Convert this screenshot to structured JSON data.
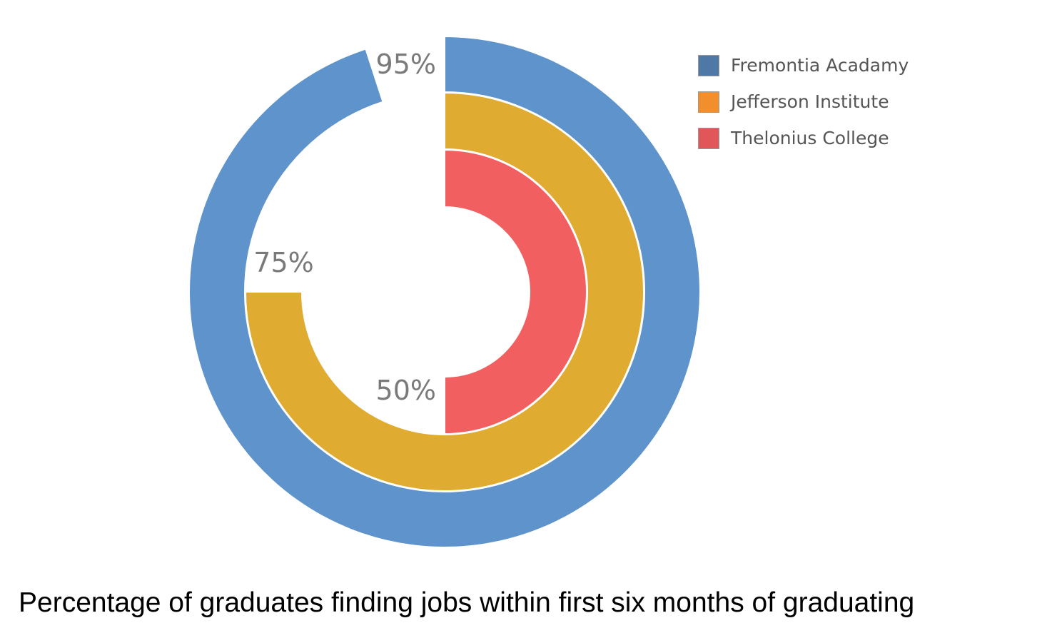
{
  "chart_data": {
    "type": "radial-bar",
    "title": "Percentage of graduates finding jobs within first six months of graduating",
    "unit": "%",
    "legend_position": "top-right",
    "direction": "clockwise-from-top",
    "series": [
      {
        "name": "Fremontia Acadamy",
        "value": 95,
        "label": "95%",
        "color": "#5e93cb",
        "legend_color": "#4e79a7"
      },
      {
        "name": "Jefferson Institute",
        "value": 75,
        "label": "75%",
        "color": "#e0ab31",
        "legend_color": "#f28e2b"
      },
      {
        "name": "Thelonius College",
        "value": 50,
        "label": "50%",
        "color": "#f25f60",
        "legend_color": "#e15759"
      }
    ]
  }
}
